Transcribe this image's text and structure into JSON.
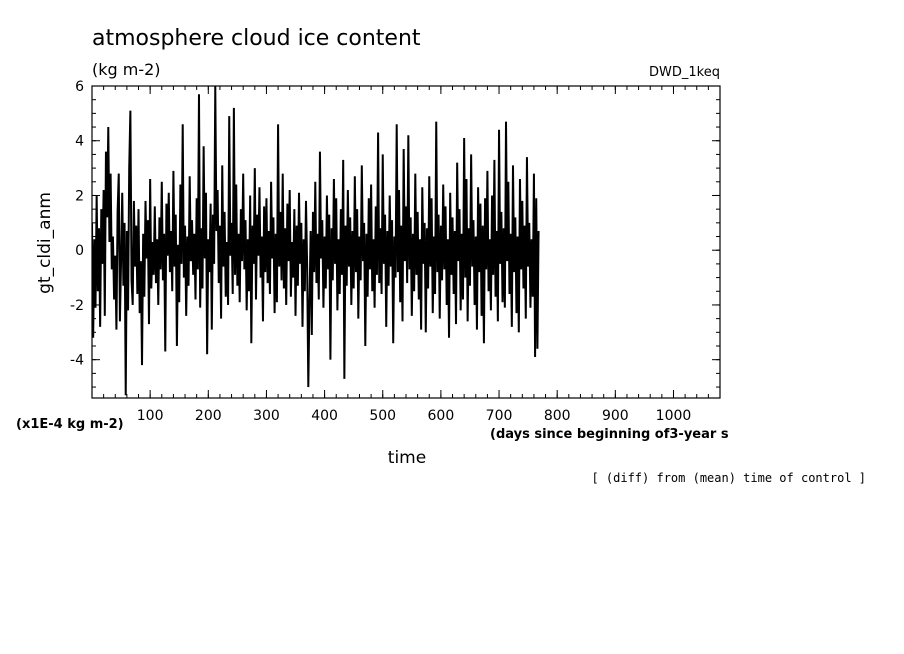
{
  "chart_data": {
    "type": "line",
    "title": "atmosphere cloud ice content",
    "units": "(kg m-2)",
    "run_label": "DWD_1keq",
    "ylabel": "gt_cldi_anm",
    "y_scale_note": "(x1E-4 kg m-2)",
    "xlabel": "time",
    "x_units_note": "(days since beginning of3-year s",
    "footnote": "[ (diff) from (mean) time of control ]",
    "xlim": [
      0,
      1080
    ],
    "ylim": [
      -5.4,
      6
    ],
    "x_ticks": [
      100,
      200,
      300,
      400,
      500,
      600,
      700,
      800,
      900,
      1000
    ],
    "y_ticks": [
      -4,
      -2,
      0,
      2,
      4,
      6
    ],
    "series": [
      {
        "name": "gt_cldi_anm",
        "x_step_days": 2,
        "values": [
          1.0,
          -3.2,
          0.4,
          -2.1,
          2.0,
          -1.5,
          0.8,
          -2.8,
          1.5,
          -0.5,
          2.2,
          -2.4,
          3.6,
          1.2,
          4.5,
          0.3,
          2.8,
          -0.7,
          0.5,
          -1.8,
          -0.2,
          -2.9,
          1.4,
          2.8,
          -2.6,
          -0.4,
          2.1,
          -1.3,
          1.0,
          -5.3,
          0.7,
          -2.2,
          3.0,
          5.1,
          -1.1,
          -2.0,
          1.8,
          -0.6,
          0.9,
          -1.6,
          1.5,
          -2.3,
          -0.4,
          -4.2,
          0.6,
          -1.7,
          1.8,
          -0.3,
          1.1,
          -2.7,
          2.6,
          -1.4,
          0.3,
          -0.9,
          1.6,
          -1.2,
          0.4,
          -2.0,
          1.2,
          -0.7,
          2.5,
          -1.1,
          0.6,
          -3.7,
          1.7,
          -0.2,
          2.1,
          -0.8,
          0.7,
          -1.5,
          2.9,
          -0.6,
          1.3,
          -3.5,
          0.2,
          -1.9,
          2.4,
          -0.5,
          4.6,
          -1.0,
          0.9,
          -2.4,
          0.5,
          -1.3,
          2.7,
          -0.4,
          1.1,
          -0.9,
          0.6,
          -1.8,
          1.9,
          -0.7,
          5.7,
          -2.1,
          0.8,
          -1.4,
          3.8,
          -0.3,
          2.1,
          -3.8,
          0.4,
          -0.8,
          1.7,
          -2.9,
          1.3,
          -0.5,
          6.0,
          0.7,
          2.2,
          -1.2,
          0.9,
          -2.5,
          3.1,
          -0.6,
          1.4,
          -1.7,
          0.3,
          -2.0,
          4.9,
          -0.2,
          1.0,
          -1.6,
          5.2,
          -0.9,
          2.4,
          -1.3,
          0.6,
          -1.9,
          1.5,
          -0.4,
          2.8,
          -0.7,
          1.1,
          -2.2,
          0.4,
          -1.5,
          2.0,
          -3.4,
          0.9,
          -0.5,
          3.0,
          -1.8,
          1.3,
          -0.2,
          2.3,
          -1.0,
          0.5,
          -2.6,
          1.6,
          -0.8,
          1.9,
          -1.2,
          0.7,
          -1.6,
          2.5,
          -0.3,
          1.2,
          -2.3,
          0.6,
          -1.9,
          4.6,
          -0.6,
          1.4,
          -1.1,
          2.8,
          -1.4,
          0.8,
          -2.0,
          1.7,
          -0.4,
          2.2,
          -1.7,
          0.3,
          -1.0,
          1.5,
          -2.4,
          0.9,
          -1.3,
          2.1,
          -0.5,
          1.0,
          -2.8,
          0.4,
          -1.5,
          1.8,
          -0.6,
          -5.0,
          -1.9,
          0.7,
          -3.1,
          1.4,
          -0.8,
          2.5,
          -1.2,
          0.6,
          -1.8,
          3.6,
          -0.3,
          1.1,
          -2.1,
          0.5,
          -1.4,
          2.0,
          -0.7,
          1.3,
          -4.0,
          0.8,
          -1.1,
          2.6,
          -0.5,
          1.9,
          -2.2,
          0.4,
          -1.6,
          1.5,
          -0.9,
          3.3,
          -4.7,
          0.9,
          -1.3,
          2.2,
          -0.6,
          1.2,
          -2.0,
          0.7,
          -1.4,
          2.7,
          -0.8,
          1.5,
          -2.5,
          0.5,
          -1.1,
          3.1,
          -0.4,
          1.0,
          -3.5,
          0.6,
          -1.7,
          1.9,
          -0.7,
          2.4,
          -1.5,
          0.4,
          -2.1,
          1.6,
          -0.9,
          4.3,
          -1.2,
          0.8,
          -1.6,
          3.5,
          -0.5,
          1.3,
          -2.8,
          0.7,
          -1.3,
          2.0,
          -0.6,
          1.1,
          -3.4,
          0.5,
          -1.0,
          4.6,
          -0.8,
          2.2,
          -1.9,
          0.9,
          -2.6,
          3.7,
          -0.4,
          1.6,
          -1.2,
          4.2,
          -0.7,
          1.2,
          -2.4,
          0.6,
          -1.5,
          2.8,
          -0.9,
          1.4,
          -1.8,
          0.4,
          -2.9,
          2.3,
          -0.5,
          1.0,
          -3.0,
          0.8,
          -1.4,
          2.7,
          -0.6,
          1.9,
          -2.3,
          0.5,
          -1.6,
          4.7,
          -0.8,
          1.3,
          -2.5,
          0.9,
          -1.1,
          2.4,
          -0.7,
          1.6,
          -2.0,
          0.4,
          -3.2,
          2.1,
          -0.9,
          1.2,
          -1.6,
          0.7,
          -2.7,
          3.2,
          -0.4,
          1.5,
          -2.2,
          0.6,
          -1.8,
          4.1,
          -1.0,
          2.6,
          -2.6,
          0.8,
          -1.3,
          3.5,
          -0.6,
          1.1,
          -2.0,
          0.5,
          -2.9,
          2.3,
          -0.8,
          1.7,
          -2.4,
          0.9,
          -3.4,
          1.9,
          -0.7,
          2.9,
          -1.5,
          0.4,
          -2.2,
          2.0,
          -0.9,
          3.3,
          -1.7,
          0.7,
          -2.6,
          4.4,
          -0.5,
          1.4,
          -1.9,
          0.8,
          -2.1,
          4.7,
          -0.4,
          2.5,
          -1.6,
          0.6,
          -2.8,
          3.1,
          -0.8,
          1.2,
          -2.3,
          0.5,
          -3.0,
          2.6,
          -0.7,
          1.8,
          -1.4,
          0.9,
          -2.5,
          3.4,
          -0.6,
          1.0,
          -2.1,
          0.4,
          -1.7,
          2.8,
          -3.9,
          1.9,
          -3.6,
          0.7
        ]
      }
    ]
  }
}
